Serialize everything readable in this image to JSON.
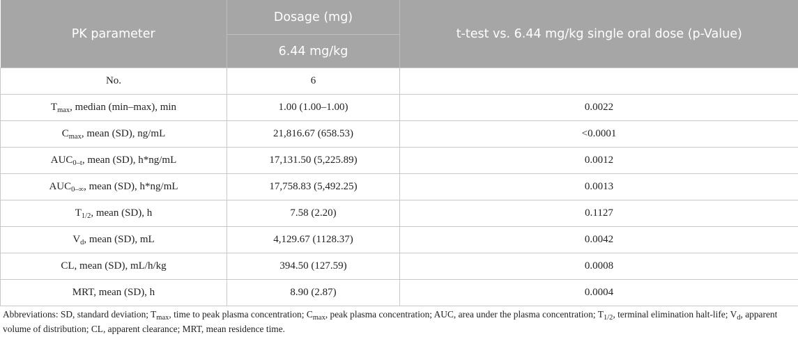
{
  "header": {
    "col1": "PK parameter",
    "col2": "Dosage (mg)",
    "col2_sub": "6.44 mg/kg",
    "col3": "t-test vs. 6.44 mg/kg single oral dose (p-Value)"
  },
  "rows": [
    {
      "param": "No.",
      "sub": "",
      "suffix": "",
      "dosage": "6",
      "pvalue": ""
    },
    {
      "param": "T",
      "sub": "max",
      "suffix": ", median (min–max), min",
      "dosage": "1.00 (1.00–1.00)",
      "pvalue": "0.0022"
    },
    {
      "param": "C",
      "sub": "max",
      "suffix": ", mean (SD), ng/mL",
      "dosage": "21,816.67 (658.53)",
      "pvalue": "<0.0001"
    },
    {
      "param": "AUC",
      "sub": "0–t",
      "suffix": ", mean (SD), h*ng/mL",
      "dosage": "17,131.50 (5,225.89)",
      "pvalue": "0.0012"
    },
    {
      "param": "AUC",
      "sub": "0–∞",
      "suffix": ", mean (SD), h*ng/mL",
      "dosage": "17,758.83 (5,492.25)",
      "pvalue": "0.0013"
    },
    {
      "param": "T",
      "sub": "1/2",
      "suffix": ", mean (SD), h",
      "dosage": "7.58 (2.20)",
      "pvalue": "0.1127"
    },
    {
      "param": "V",
      "sub": "d",
      "suffix": ", mean (SD), mL",
      "dosage": "4,129.67 (1128.37)",
      "pvalue": "0.0042"
    },
    {
      "param": "CL, mean (SD), mL/h/kg",
      "sub": "",
      "suffix": "",
      "dosage": "394.50 (127.59)",
      "pvalue": "0.0008"
    },
    {
      "param": "MRT, mean (SD), h",
      "sub": "",
      "suffix": "",
      "dosage": "8.90 (2.87)",
      "pvalue": "0.0004"
    }
  ],
  "footnote": {
    "p1": "Abbreviations: SD, standard deviation; T",
    "s1": "max",
    "p2": ", time to peak plasma concentration; C",
    "s2": "max",
    "p3": ", peak plasma concentration; AUC, area under the plasma concentration; T",
    "s3": "1/2",
    "p4": ", terminal elimination halt-life; V",
    "s4": "d",
    "p5": ", apparent volume of distribution; CL, apparent clearance; MRT, mean residence time."
  }
}
